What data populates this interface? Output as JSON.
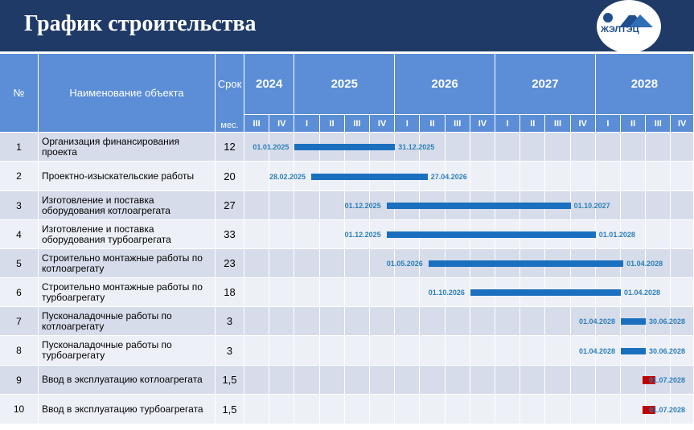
{
  "header": {
    "title": "График строительства"
  },
  "logo": {
    "text": "ЖЭЛТЭЦ"
  },
  "table": {
    "col_num": "№",
    "col_name": "Наименование объекта",
    "col_dur_top": "Срок",
    "col_dur_bottom": "мес.",
    "years": [
      {
        "label": "2024",
        "quarters": [
          "III",
          "IV"
        ]
      },
      {
        "label": "2025",
        "quarters": [
          "I",
          "II",
          "III",
          "IV"
        ]
      },
      {
        "label": "2026",
        "quarters": [
          "I",
          "II",
          "III",
          "IV"
        ]
      },
      {
        "label": "2027",
        "quarters": [
          "I",
          "II",
          "III",
          "IV"
        ]
      },
      {
        "label": "2028",
        "quarters": [
          "I",
          "II",
          "III",
          "IV"
        ]
      }
    ],
    "rows": [
      {
        "num": "1",
        "name": "Организация финансирования проекта",
        "duration": "12",
        "start": "01.01.2025",
        "end": "31.12.2025",
        "start_q": 2,
        "end_q": 6,
        "kind": "bar"
      },
      {
        "num": "2",
        "name": "Проектно-изыскательские работы",
        "duration": "20",
        "start": "28.02.2025",
        "end": "27.04.2026",
        "start_q": 2.66,
        "end_q": 7.3,
        "kind": "bar"
      },
      {
        "num": "3",
        "name": "Изготовление и поставка оборудования котлоагрегата",
        "duration": "27",
        "start": "01.12.2025",
        "end": "01.10.2027",
        "start_q": 5.66,
        "end_q": 13,
        "kind": "bar"
      },
      {
        "num": "4",
        "name": "Изготовление и поставка оборудования турбоагрегата",
        "duration": "33",
        "start": "01.12.2025",
        "end": "01.01.2028",
        "start_q": 5.66,
        "end_q": 14,
        "kind": "bar"
      },
      {
        "num": "5",
        "name": "Строительно монтажные работы по котлоагрегату",
        "duration": "23",
        "start": "01.05.2026",
        "end": "01.04.2028",
        "start_q": 7.33,
        "end_q": 15.1,
        "kind": "bar"
      },
      {
        "num": "6",
        "name": "Строительно монтажные работы по турбоагрегату",
        "duration": "18",
        "start": "01.10.2026",
        "end": "01.04.2028",
        "start_q": 9,
        "end_q": 15,
        "kind": "bar"
      },
      {
        "num": "7",
        "name": "Пусконаладочные работы по котлоагрегату",
        "duration": "3",
        "start": "01.04.2028",
        "end": "30.06.2028",
        "start_q": 15,
        "end_q": 16,
        "kind": "bar"
      },
      {
        "num": "8",
        "name": "Пусконаладочные работы по турбоагрегату",
        "duration": "3",
        "start": "01.04.2028",
        "end": "30.06.2028",
        "start_q": 15,
        "end_q": 16,
        "kind": "bar"
      },
      {
        "num": "9",
        "name": "Ввод в эксплуатацию котлоагрегата",
        "duration": "1,5",
        "start": "",
        "end": "01.07.2028",
        "start_q": 15.85,
        "end_q": 16.4,
        "kind": "milestone"
      },
      {
        "num": "10",
        "name": "Ввод в эксплуатацию турбоагрегата",
        "duration": "1,5",
        "start": "",
        "end": "01.07.2028",
        "start_q": 15.85,
        "end_q": 16.4,
        "kind": "milestone"
      }
    ]
  },
  "colors": {
    "header_bg": "#1f3a66",
    "table_header": "#5b8ed6",
    "row_dark": "#d6dcea",
    "row_light": "#edf0f7",
    "bar": "#1a6fbf",
    "milestone": "#c00000",
    "date_text": "#2c7fb8"
  }
}
